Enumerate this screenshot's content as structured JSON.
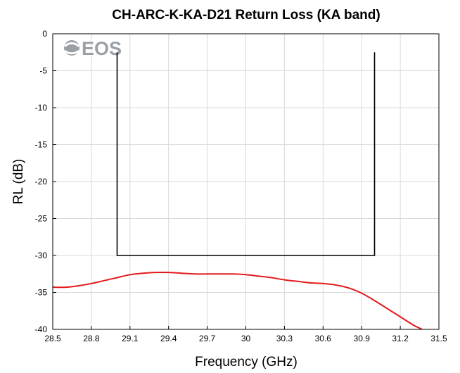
{
  "chart_data": {
    "type": "line",
    "title": "CH-ARC-K-KA-D21 Return Loss (KA band)",
    "xlabel": "Frequency (GHz)",
    "ylabel": "RL (dB)",
    "xlim": [
      28.5,
      31.5
    ],
    "ylim": [
      -40,
      0
    ],
    "xticks": [
      28.5,
      28.8,
      29.1,
      29.4,
      29.7,
      30,
      30.3,
      30.6,
      30.9,
      31.2,
      31.5
    ],
    "xtick_labels": [
      "28.5",
      "28.8",
      "29.1",
      "29.4",
      "29.7",
      "30",
      "30.3",
      "30.6",
      "30.9",
      "31.2",
      "31.5"
    ],
    "yticks": [
      0,
      -5,
      -10,
      -15,
      -20,
      -25,
      -30,
      -35,
      -40
    ],
    "ytick_labels": [
      "0",
      "-5",
      "-10",
      "-15",
      "-20",
      "-25",
      "-30",
      "-35",
      "-40"
    ],
    "grid": true,
    "series": [
      {
        "color": "#e31a1c",
        "x": [
          28.5,
          28.6,
          28.7,
          28.8,
          28.9,
          29.0,
          29.1,
          29.2,
          29.3,
          29.4,
          29.5,
          29.6,
          29.7,
          29.8,
          29.9,
          30.0,
          30.1,
          30.2,
          30.3,
          30.4,
          30.5,
          30.6,
          30.7,
          30.8,
          30.9,
          31.0,
          31.1,
          31.2,
          31.3,
          31.37
        ],
        "y": [
          -34.3,
          -34.3,
          -34.1,
          -33.8,
          -33.4,
          -33.0,
          -32.6,
          -32.4,
          -32.3,
          -32.3,
          -32.4,
          -32.5,
          -32.5,
          -32.5,
          -32.5,
          -32.6,
          -32.8,
          -33.0,
          -33.3,
          -33.5,
          -33.7,
          -33.8,
          -34.0,
          -34.4,
          -35.1,
          -36.1,
          -37.2,
          -38.3,
          -39.4,
          -40.0
        ]
      }
    ],
    "mask": {
      "color": "#000000",
      "x": [
        29.0,
        29.0,
        31.0,
        31.0
      ],
      "y": [
        -2.5,
        -30,
        -30,
        -2.5
      ]
    }
  },
  "logo": {
    "text": "EOS",
    "color": "#9aa0a6"
  }
}
